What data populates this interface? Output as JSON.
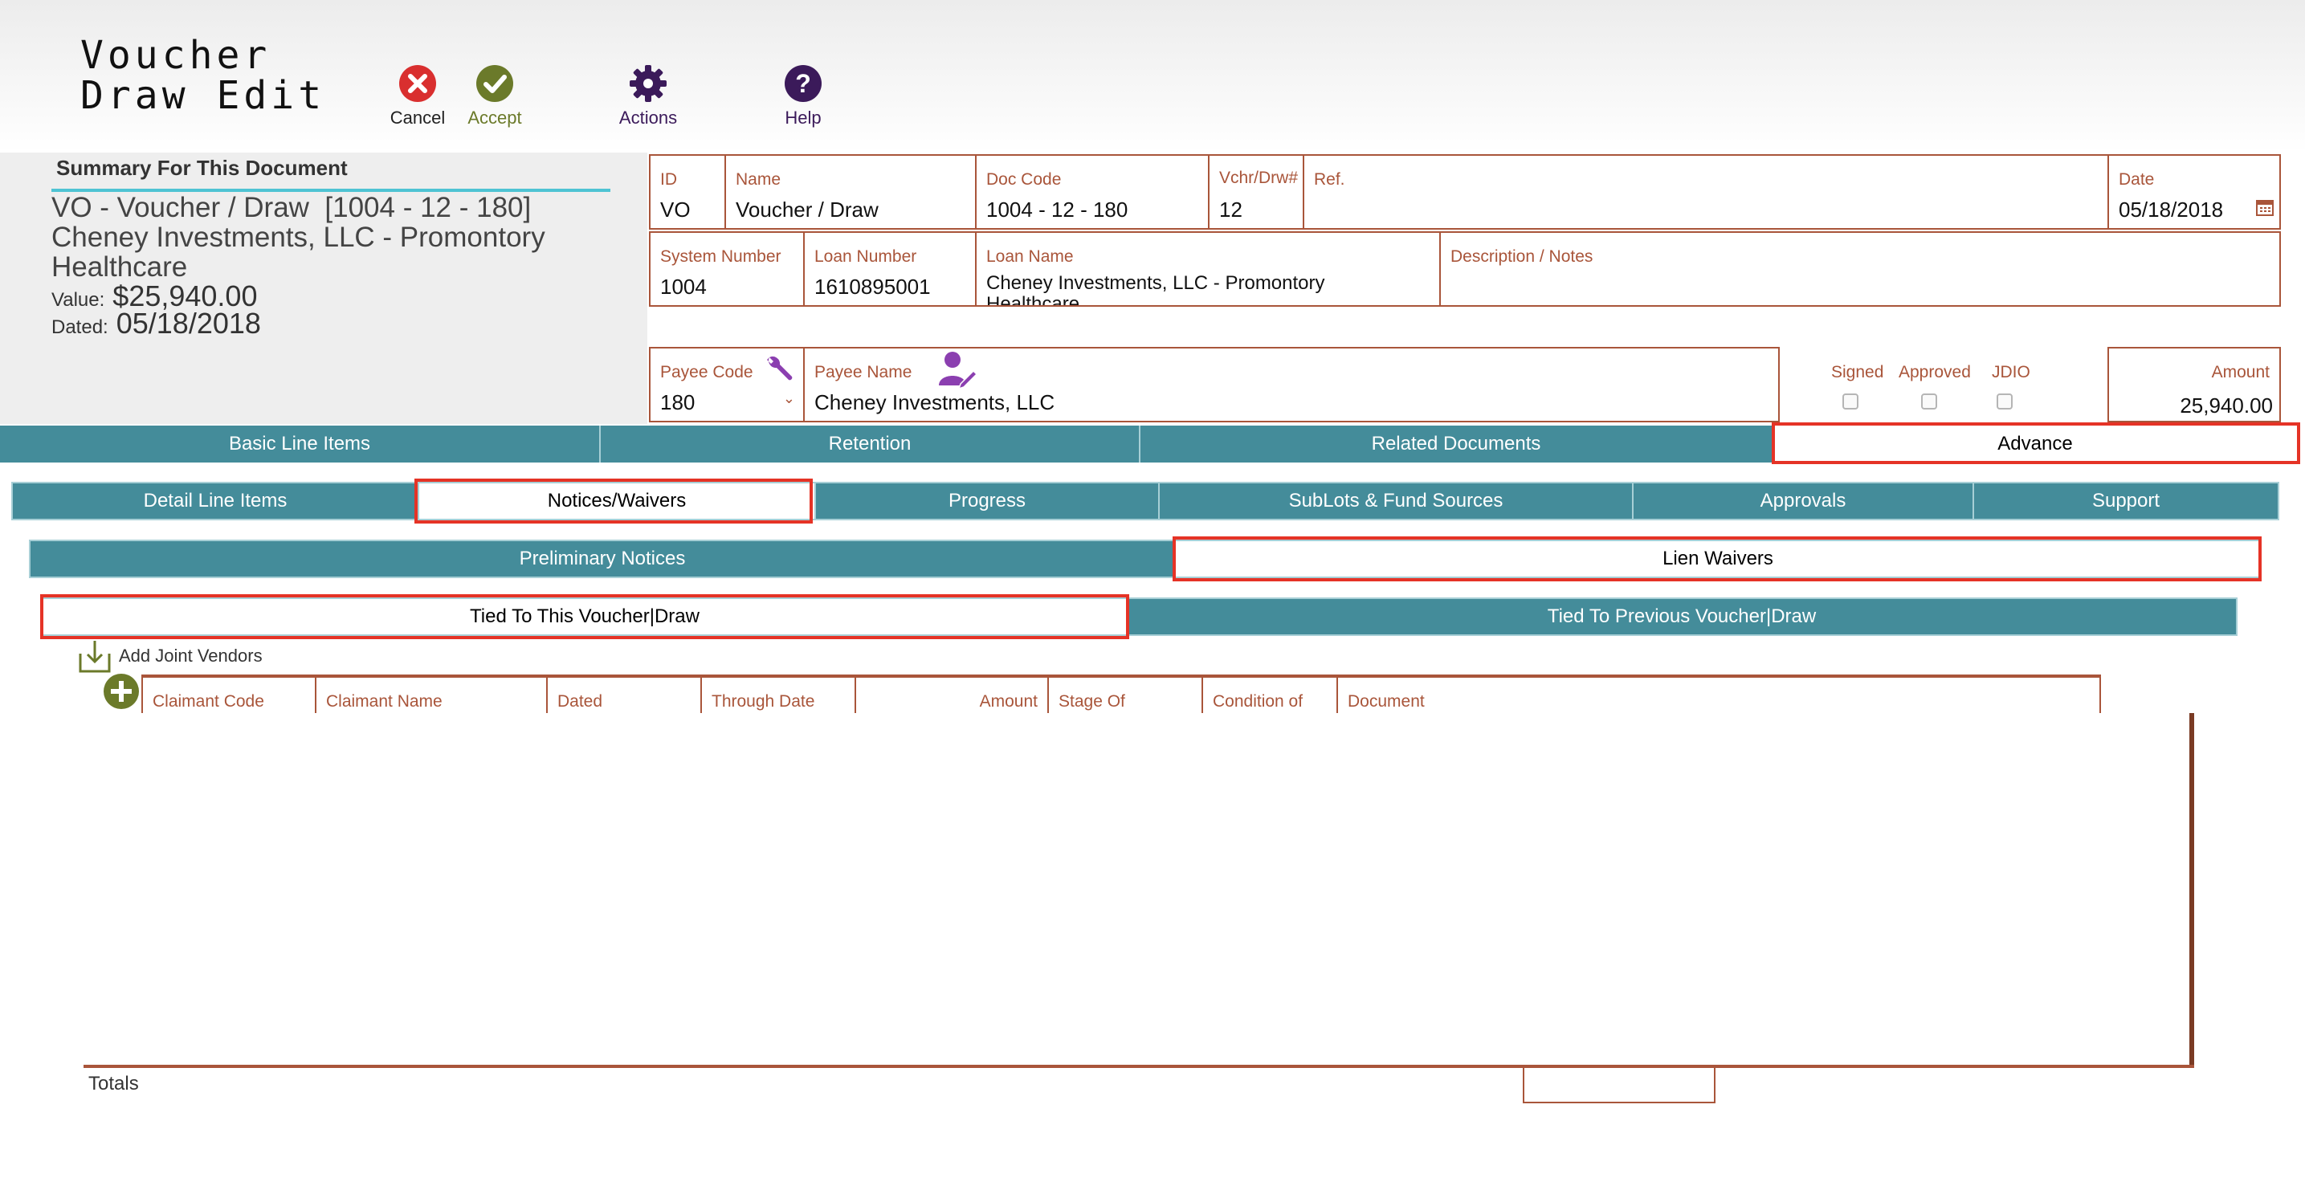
{
  "header": {
    "title": "Voucher\nDraw Edit",
    "buttons": {
      "cancel": "Cancel",
      "accept": "Accept",
      "actions": "Actions",
      "help": "Help"
    }
  },
  "summary": {
    "title": "Summary For This Document",
    "doc": "VO - Voucher / Draw  [1004 - 12 - 180]\nCheney Investments, LLC - Promontory\nHealthcare",
    "value_label": "Value:",
    "value": "$25,940.00",
    "dated_label": "Dated:",
    "dated": "05/18/2018"
  },
  "fields": {
    "id": {
      "label": "ID",
      "value": "VO"
    },
    "name": {
      "label": "Name",
      "value": "Voucher / Draw"
    },
    "doc_code": {
      "label": "Doc Code",
      "value": "1004 - 12 - 180"
    },
    "vchr_drw": {
      "label": "Vchr/Drw#",
      "value": "12"
    },
    "ref": {
      "label": "Ref.",
      "value": ""
    },
    "date": {
      "label": "Date",
      "value": "05/18/2018"
    },
    "system_number": {
      "label": "System Number",
      "value": "1004"
    },
    "loan_number": {
      "label": "Loan Number",
      "value": "1610895001"
    },
    "loan_name": {
      "label": "Loan Name",
      "value": "Cheney Investments, LLC - Promontory Healthcare"
    },
    "description": {
      "label": "Description / Notes",
      "value": ""
    },
    "payee_code": {
      "label": "Payee Code",
      "value": "180"
    },
    "payee_name": {
      "label": "Payee Name",
      "value": "Cheney Investments, LLC"
    },
    "signed": "Signed",
    "approved": "Approved",
    "jdio": "JDIO",
    "amount": {
      "label": "Amount",
      "value": "25,940.00"
    }
  },
  "main_tabs": [
    "Basic Line Items",
    "Retention",
    "Related Documents",
    "Advance"
  ],
  "sub_tabs": [
    "Detail Line Items",
    "Notices/Waivers",
    "Progress",
    "SubLots & Fund Sources",
    "Approvals",
    "Support"
  ],
  "notice_tabs": [
    "Preliminary Notices",
    "Lien Waivers"
  ],
  "waiver_tabs": [
    "Tied To This Voucher|Draw",
    "Tied To Previous Voucher|Draw"
  ],
  "table": {
    "add_joint_vendors": "Add Joint Vendors",
    "columns": [
      "Claimant Code",
      "Claimant Name",
      "Dated",
      "Through Date",
      "Amount",
      "Stage Of",
      "Condition of",
      "Document"
    ],
    "totals_label": "Totals"
  },
  "colors": {
    "tab_teal": "#448c9a",
    "field_border": "#a9553a",
    "highlight_red": "#e53326",
    "summary_rule": "#4ec3d3",
    "accept_green": "#6b7a2a",
    "actions_purple": "#3b1a5a"
  }
}
